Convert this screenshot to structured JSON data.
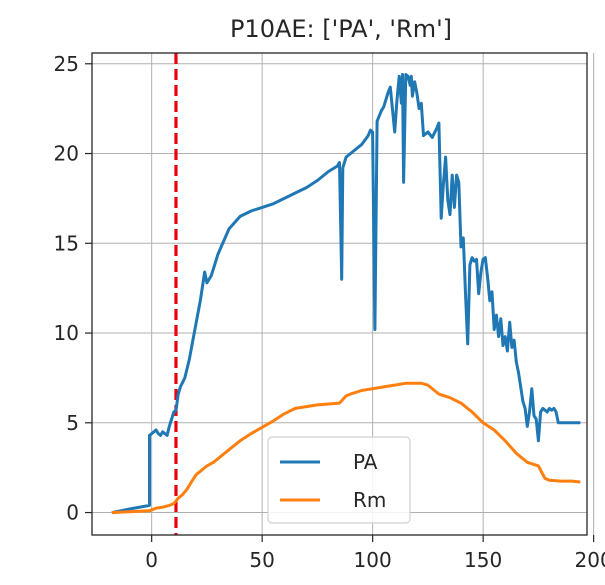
{
  "chart_data": {
    "type": "line",
    "title": "P10AE: ['PA', 'Rm']",
    "xlabel": "",
    "ylabel": "",
    "xlim": [
      -27,
      197
    ],
    "ylim": [
      -1.25,
      25.6
    ],
    "xticks": [
      0,
      50,
      100,
      150,
      200
    ],
    "yticks": [
      0,
      5,
      10,
      15,
      20,
      25
    ],
    "grid": true,
    "legend_position": "lower center",
    "vline": {
      "x": 11,
      "color": "#e8000b",
      "style": "dashed"
    },
    "series": [
      {
        "name": "PA",
        "color": "#1f77b4",
        "x": [
          -18,
          -10,
          -1,
          -1,
          0,
          1,
          2,
          3,
          4,
          5,
          6,
          7,
          8,
          9,
          10,
          11,
          12,
          13,
          15,
          17,
          20,
          22,
          23,
          24,
          25,
          27,
          30,
          35,
          40,
          45,
          50,
          55,
          60,
          65,
          70,
          75,
          80,
          84,
          85,
          86,
          86.5,
          87,
          88,
          90,
          95,
          98,
          99,
          100,
          101,
          102,
          104,
          105,
          106,
          107,
          108,
          110,
          111,
          112,
          113,
          113.5,
          114,
          115,
          116,
          117,
          117.5,
          118,
          119,
          120,
          121,
          122,
          123,
          125,
          127,
          129,
          130,
          131,
          132,
          133,
          134,
          135,
          136,
          137,
          138,
          139,
          140,
          141,
          142,
          143,
          144,
          145,
          146,
          147,
          148,
          149,
          150,
          151,
          152,
          153,
          154,
          155,
          156,
          157,
          158,
          159,
          160,
          161,
          162,
          163,
          164,
          165,
          166,
          167,
          168,
          169,
          170,
          171,
          172,
          173,
          174,
          175,
          176,
          177,
          178,
          179,
          180,
          181,
          182,
          183,
          184,
          185,
          186,
          187,
          188,
          189,
          190,
          191,
          192,
          193,
          194
        ],
        "y": [
          0,
          0.2,
          0.4,
          4.3,
          4.4,
          4.5,
          4.6,
          4.4,
          4.3,
          4.5,
          4.4,
          4.3,
          4.8,
          5.2,
          5.6,
          5.7,
          6.6,
          7.0,
          7.5,
          8.5,
          10.5,
          11.8,
          12.6,
          13.4,
          12.8,
          13.2,
          14.4,
          15.8,
          16.5,
          16.8,
          17.0,
          17.2,
          17.5,
          17.8,
          18.1,
          18.5,
          19.0,
          19.3,
          19.5,
          13.0,
          19.2,
          19.4,
          19.8,
          20.0,
          20.5,
          21.0,
          21.3,
          21.2,
          10.2,
          21.8,
          22.4,
          22.6,
          23.0,
          23.4,
          23.7,
          21.2,
          23.0,
          24.3,
          22.8,
          24.4,
          18.4,
          24.4,
          24.3,
          23.8,
          24.3,
          23.2,
          24.0,
          23.4,
          22.5,
          22.8,
          21.0,
          21.2,
          20.9,
          21.4,
          21.7,
          16.4,
          18.3,
          19.8,
          17.4,
          16.6,
          18.8,
          17.0,
          18.8,
          18.4,
          14.8,
          15.3,
          12.2,
          9.4,
          13.8,
          14.2,
          14.0,
          14.1,
          12.2,
          13.4,
          14.1,
          14.2,
          13.1,
          11.8,
          12.3,
          10.2,
          11.0,
          9.8,
          10.8,
          9.3,
          9.8,
          9.0,
          10.6,
          9.2,
          9.6,
          8.4,
          7.8,
          7.0,
          6.2,
          5.8,
          4.8,
          5.6,
          6.9,
          5.4,
          5.2,
          4.0,
          5.6,
          5.8,
          5.7,
          5.6,
          5.8,
          5.7,
          5.8,
          5.6,
          5.0,
          5.0,
          5.0,
          5.0,
          5.0,
          5.0,
          5.0,
          5.0,
          5.0,
          5.0,
          5.0
        ]
      },
      {
        "name": "Rm",
        "color": "#ff7f0e",
        "x": [
          -18,
          -10,
          -1,
          2,
          5,
          8,
          10,
          12,
          14,
          16,
          18,
          20,
          22,
          25,
          28,
          30,
          35,
          40,
          45,
          50,
          55,
          60,
          65,
          70,
          75,
          80,
          85,
          88,
          90,
          95,
          100,
          105,
          110,
          115,
          120,
          122,
          125,
          130,
          135,
          140,
          145,
          150,
          155,
          160,
          165,
          170,
          175,
          178,
          180,
          185,
          190,
          194
        ],
        "y": [
          0,
          0.05,
          0.1,
          0.25,
          0.3,
          0.4,
          0.5,
          0.8,
          1.0,
          1.3,
          1.7,
          2.1,
          2.3,
          2.6,
          2.8,
          3.0,
          3.5,
          4.0,
          4.4,
          4.75,
          5.1,
          5.5,
          5.8,
          5.9,
          6.0,
          6.05,
          6.1,
          6.5,
          6.6,
          6.8,
          6.9,
          7.0,
          7.1,
          7.2,
          7.2,
          7.2,
          7.1,
          6.6,
          6.4,
          6.1,
          5.6,
          5.0,
          4.6,
          4.0,
          3.3,
          2.8,
          2.6,
          1.9,
          1.8,
          1.75,
          1.75,
          1.7
        ]
      }
    ]
  }
}
